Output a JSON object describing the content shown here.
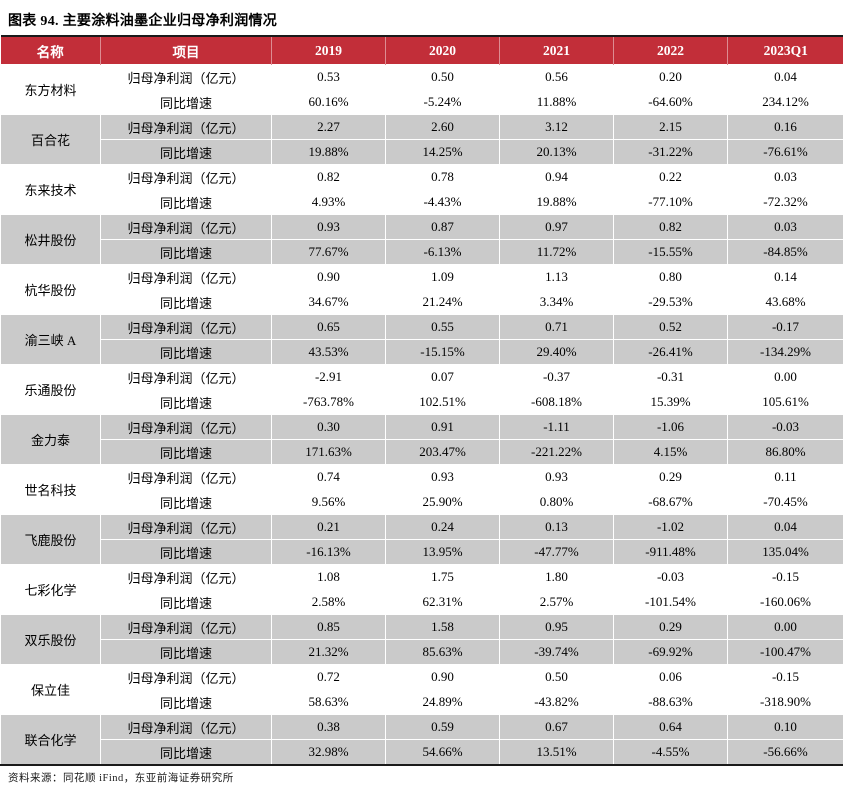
{
  "title": "图表 94. 主要涂料油墨企业归母净利润情况",
  "source_note": "资料来源：同花顺 iFind，东亚前海证券研究所",
  "colors": {
    "header_bg": "#C22E39",
    "header_text": "#FFFFFF",
    "band_gray": "#CACACA",
    "rule": "#1A1A1A"
  },
  "chart_data": {
    "type": "table",
    "title": "图表 94. 主要涂料油墨企业归母净利润情况",
    "columns": [
      "名称",
      "项目",
      "2019",
      "2020",
      "2021",
      "2022",
      "2023Q1"
    ],
    "metric_labels": [
      "归母净利润（亿元）",
      "同比增速"
    ],
    "companies": [
      {
        "name": "东方材料",
        "net_profit": [
          "0.53",
          "0.50",
          "0.56",
          "0.20",
          "0.04"
        ],
        "yoy_growth": [
          "60.16%",
          "-5.24%",
          "11.88%",
          "-64.60%",
          "234.12%"
        ]
      },
      {
        "name": "百合花",
        "net_profit": [
          "2.27",
          "2.60",
          "3.12",
          "2.15",
          "0.16"
        ],
        "yoy_growth": [
          "19.88%",
          "14.25%",
          "20.13%",
          "-31.22%",
          "-76.61%"
        ]
      },
      {
        "name": "东来技术",
        "net_profit": [
          "0.82",
          "0.78",
          "0.94",
          "0.22",
          "0.03"
        ],
        "yoy_growth": [
          "4.93%",
          "-4.43%",
          "19.88%",
          "-77.10%",
          "-72.32%"
        ]
      },
      {
        "name": "松井股份",
        "net_profit": [
          "0.93",
          "0.87",
          "0.97",
          "0.82",
          "0.03"
        ],
        "yoy_growth": [
          "77.67%",
          "-6.13%",
          "11.72%",
          "-15.55%",
          "-84.85%"
        ]
      },
      {
        "name": "杭华股份",
        "net_profit": [
          "0.90",
          "1.09",
          "1.13",
          "0.80",
          "0.14"
        ],
        "yoy_growth": [
          "34.67%",
          "21.24%",
          "3.34%",
          "-29.53%",
          "43.68%"
        ]
      },
      {
        "name": "渝三峡 A",
        "net_profit": [
          "0.65",
          "0.55",
          "0.71",
          "0.52",
          "-0.17"
        ],
        "yoy_growth": [
          "43.53%",
          "-15.15%",
          "29.40%",
          "-26.41%",
          "-134.29%"
        ]
      },
      {
        "name": "乐通股份",
        "net_profit": [
          "-2.91",
          "0.07",
          "-0.37",
          "-0.31",
          "0.00"
        ],
        "yoy_growth": [
          "-763.78%",
          "102.51%",
          "-608.18%",
          "15.39%",
          "105.61%"
        ]
      },
      {
        "name": "金力泰",
        "net_profit": [
          "0.30",
          "0.91",
          "-1.11",
          "-1.06",
          "-0.03"
        ],
        "yoy_growth": [
          "171.63%",
          "203.47%",
          "-221.22%",
          "4.15%",
          "86.80%"
        ]
      },
      {
        "name": "世名科技",
        "net_profit": [
          "0.74",
          "0.93",
          "0.93",
          "0.29",
          "0.11"
        ],
        "yoy_growth": [
          "9.56%",
          "25.90%",
          "0.80%",
          "-68.67%",
          "-70.45%"
        ]
      },
      {
        "name": "飞鹿股份",
        "net_profit": [
          "0.21",
          "0.24",
          "0.13",
          "-1.02",
          "0.04"
        ],
        "yoy_growth": [
          "-16.13%",
          "13.95%",
          "-47.77%",
          "-911.48%",
          "135.04%"
        ]
      },
      {
        "name": "七彩化学",
        "net_profit": [
          "1.08",
          "1.75",
          "1.80",
          "-0.03",
          "-0.15"
        ],
        "yoy_growth": [
          "2.58%",
          "62.31%",
          "2.57%",
          "-101.54%",
          "-160.06%"
        ]
      },
      {
        "name": "双乐股份",
        "net_profit": [
          "0.85",
          "1.58",
          "0.95",
          "0.29",
          "0.00"
        ],
        "yoy_growth": [
          "21.32%",
          "85.63%",
          "-39.74%",
          "-69.92%",
          "-100.47%"
        ]
      },
      {
        "name": "保立佳",
        "net_profit": [
          "0.72",
          "0.90",
          "0.50",
          "0.06",
          "-0.15"
        ],
        "yoy_growth": [
          "58.63%",
          "24.89%",
          "-43.82%",
          "-88.63%",
          "-318.90%"
        ]
      },
      {
        "name": "联合化学",
        "net_profit": [
          "0.38",
          "0.59",
          "0.67",
          "0.64",
          "0.10"
        ],
        "yoy_growth": [
          "32.98%",
          "54.66%",
          "13.51%",
          "-4.55%",
          "-56.66%"
        ]
      }
    ]
  }
}
